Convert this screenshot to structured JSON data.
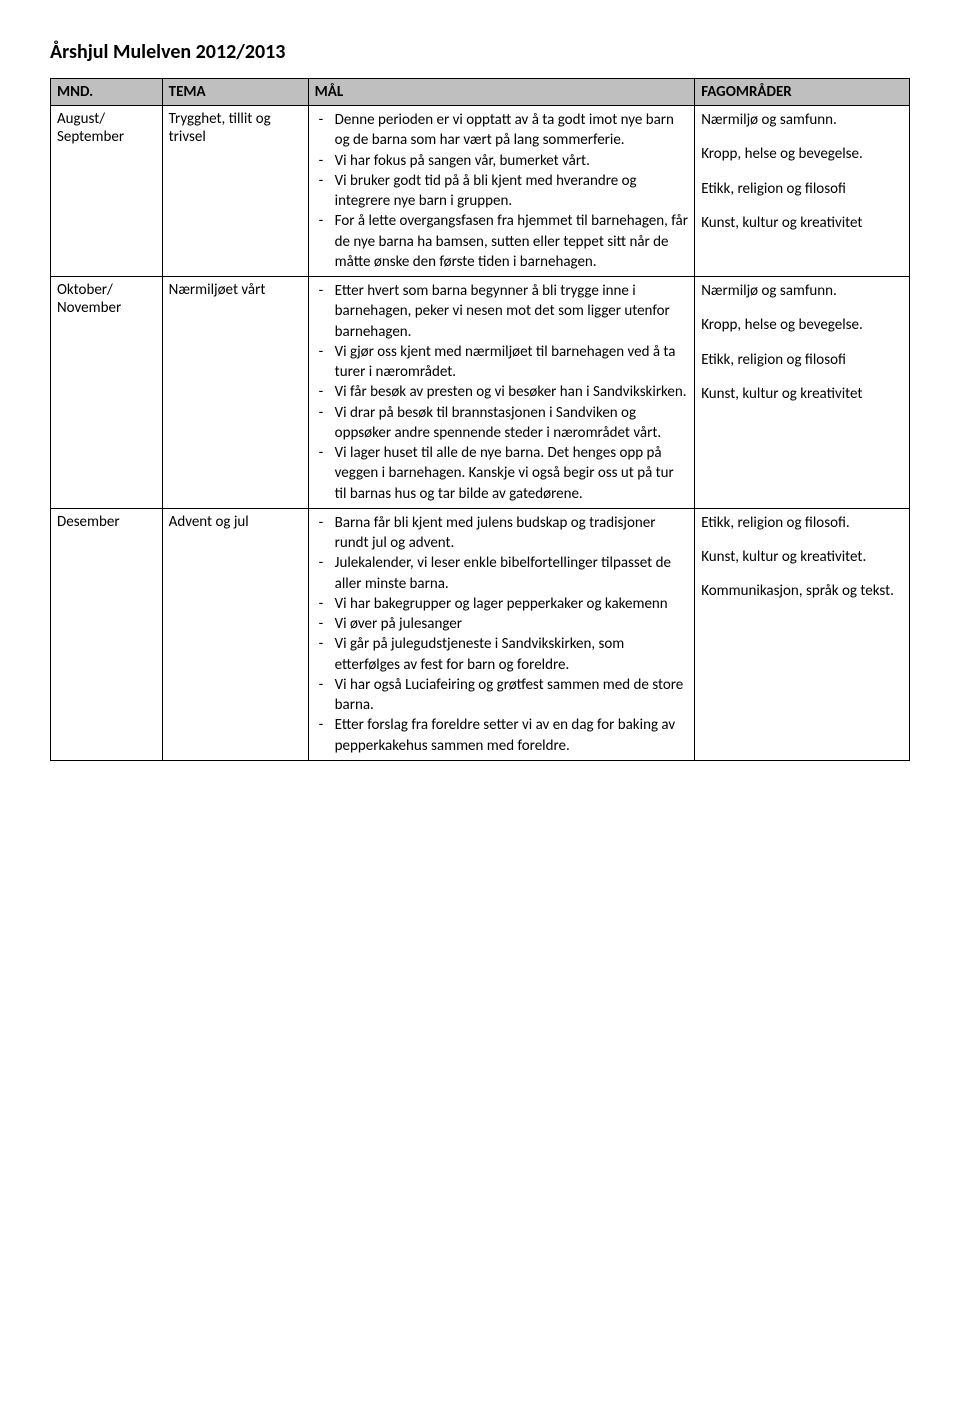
{
  "title": "Årshjul Mulelven 2012/2013",
  "headers": {
    "mnd": "MND.",
    "tema": "TEMA",
    "mal": "MÅL",
    "fag": "FAGOMRÅDER"
  },
  "header_bg": "#bfbfbf",
  "rows": [
    {
      "mnd": "August/\nSeptember",
      "tema": "Trygghet, tillit og trivsel",
      "mal": [
        "Denne perioden er vi opptatt av å ta godt imot nye barn og de barna som har vært på lang sommerferie.",
        "Vi har fokus på sangen vår, bumerket vårt.",
        "Vi bruker godt tid på å bli kjent med hverandre og integrere nye barn i gruppen.",
        "For å lette overgangsfasen fra hjemmet til barnehagen, får de nye barna ha bamsen, sutten eller teppet sitt når de måtte ønske den første tiden i barnehagen."
      ],
      "fag": [
        "Nærmiljø og samfunn.",
        "Kropp, helse og bevegelse.",
        "Etikk, religion og filosofi",
        "Kunst, kultur og kreativitet"
      ]
    },
    {
      "mnd": "Oktober/\nNovember",
      "tema": "Nærmiljøet vårt",
      "mal": [
        "Etter hvert som barna begynner å bli trygge inne i barnehagen, peker vi nesen mot det som ligger utenfor barnehagen.",
        "Vi gjør oss kjent med nærmiljøet til barnehagen ved å ta turer i nærområdet.",
        "Vi får besøk av presten og vi besøker han i Sandvikskirken.",
        "Vi drar på besøk til brannstasjonen i Sandviken og oppsøker andre spennende steder i nærområdet vårt.",
        "Vi lager huset til alle de nye barna. Det henges opp på veggen i barnehagen. Kanskje vi også begir oss ut på tur til barnas hus og tar bilde av gatedørene."
      ],
      "fag": [
        "Nærmiljø og samfunn.",
        "Kropp, helse og bevegelse.",
        "Etikk, religion og filosofi",
        "Kunst, kultur og kreativitet"
      ]
    },
    {
      "mnd": "Desember",
      "tema": "Advent og jul",
      "mal": [
        "Barna får bli kjent med julens budskap og tradisjoner rundt jul og advent.",
        "Julekalender, vi leser enkle bibelfortellinger tilpasset de aller minste barna.",
        "Vi har bakegrupper og lager pepperkaker og kakemenn",
        "Vi øver på julesanger",
        "Vi går på julegudstjeneste i Sandvikskirken, som etterfølges av fest for barn og foreldre.",
        "Vi har også Luciafeiring og grøtfest sammen med de store barna.",
        "Etter forslag fra foreldre setter vi av en dag for baking av pepperkakehus sammen med foreldre."
      ],
      "fag": [
        "Etikk, religion og filosofi.",
        "Kunst, kultur og kreativitet.",
        "Kommunikasjon, språk og tekst."
      ]
    }
  ]
}
